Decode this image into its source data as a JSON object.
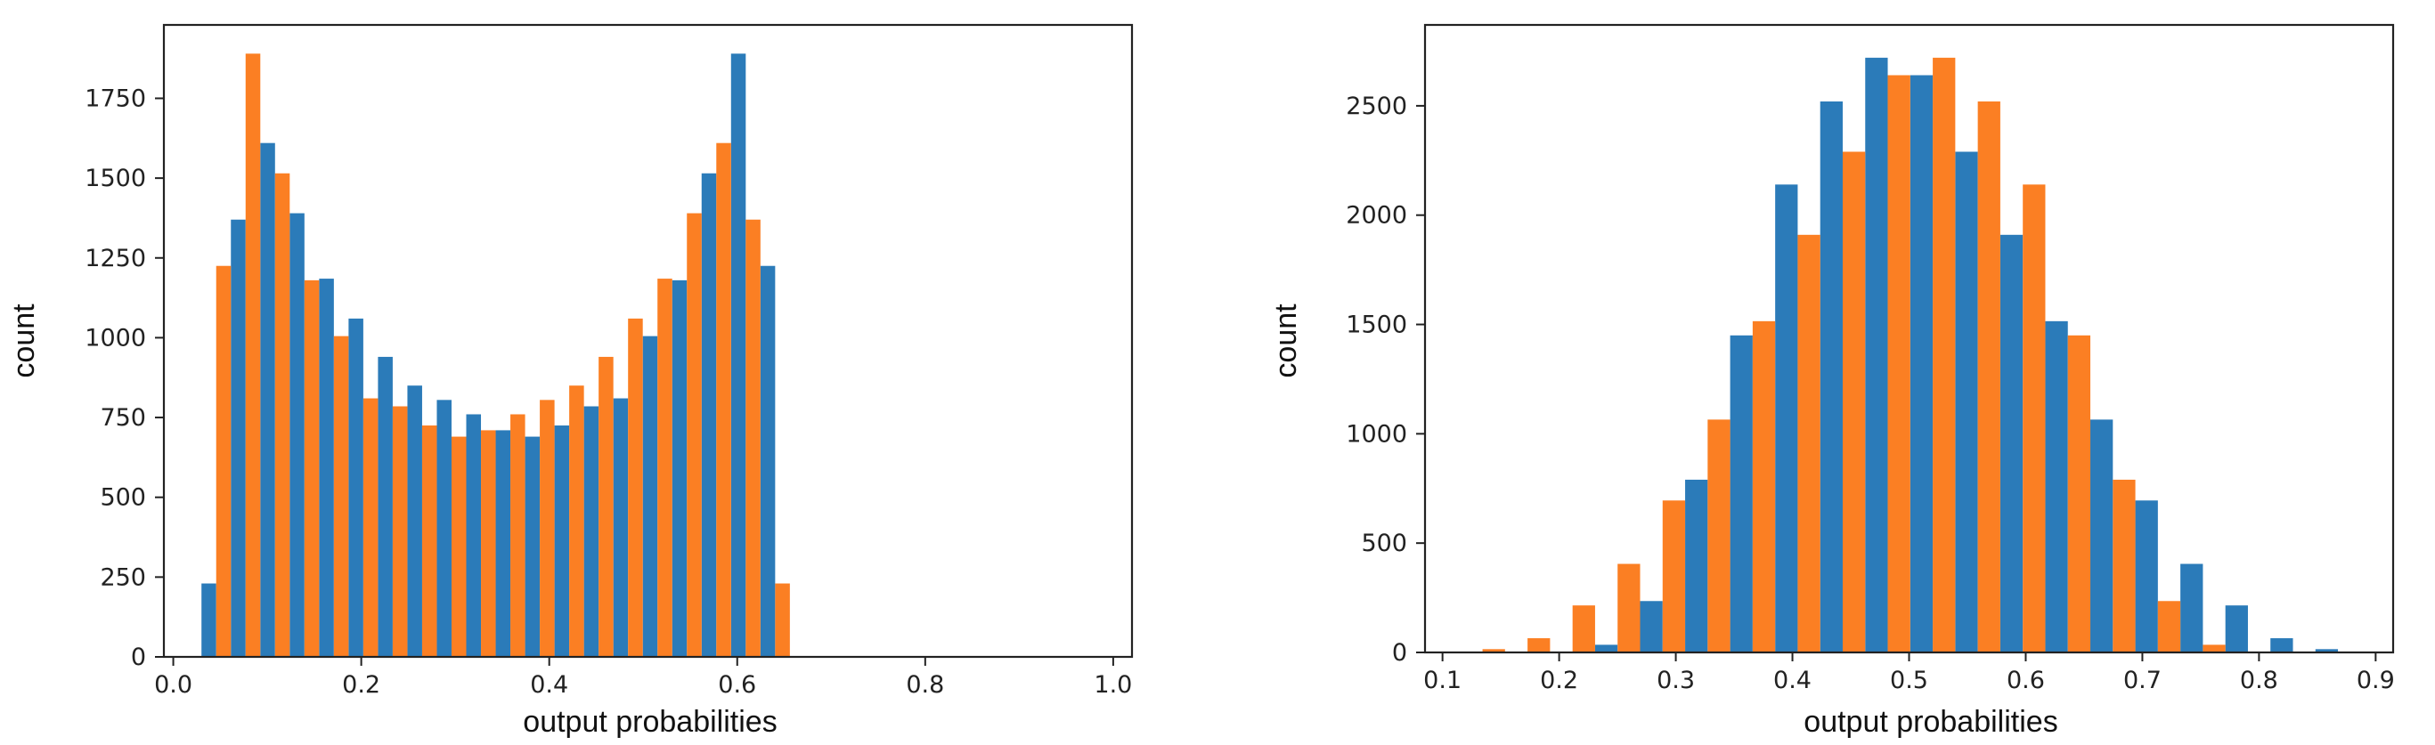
{
  "colors": {
    "series_a": "#2b7bb9",
    "series_b": "#fb7f23"
  },
  "chart_data": [
    {
      "type": "bar",
      "xlabel": "output probabilities",
      "ylabel": "count",
      "xlim": [
        -0.01,
        1.02
      ],
      "ylim": [
        0,
        1980
      ],
      "xticks": [
        0.0,
        0.2,
        0.4,
        0.6,
        0.8,
        1.0
      ],
      "xtick_labels": [
        "0.0",
        "0.2",
        "0.4",
        "0.6",
        "0.8",
        "1.0"
      ],
      "yticks": [
        0,
        250,
        500,
        750,
        1000,
        1250,
        1500,
        1750
      ],
      "ytick_labels": [
        "0",
        "250",
        "500",
        "750",
        "1000",
        "1250",
        "1500",
        "1750"
      ],
      "bin_start": 0.03,
      "bin_width": 0.0313,
      "grid": false,
      "series": [
        {
          "color": "#2b7bb9",
          "values": [
            230,
            1370,
            1610,
            1390,
            1185,
            1060,
            940,
            850,
            805,
            760,
            710,
            690,
            725,
            785,
            810,
            1005,
            1180,
            1515,
            1890,
            1225
          ]
        },
        {
          "color": "#fb7f23",
          "values": [
            1225,
            1890,
            1515,
            1180,
            1005,
            810,
            785,
            725,
            690,
            710,
            760,
            805,
            850,
            940,
            1060,
            1185,
            1390,
            1610,
            1370,
            230
          ]
        }
      ]
    },
    {
      "type": "bar",
      "xlabel": "output probabilities",
      "ylabel": "count",
      "xlim": [
        0.085,
        0.915
      ],
      "ylim": [
        0,
        2870
      ],
      "xticks": [
        0.1,
        0.2,
        0.3,
        0.4,
        0.5,
        0.6,
        0.7,
        0.8,
        0.9
      ],
      "xtick_labels": [
        "0.1",
        "0.2",
        "0.3",
        "0.4",
        "0.5",
        "0.6",
        "0.7",
        "0.8",
        "0.9"
      ],
      "yticks": [
        0,
        500,
        1000,
        1500,
        2000,
        2500
      ],
      "ytick_labels": [
        "0",
        "500",
        "1000",
        "1500",
        "2000",
        "2500"
      ],
      "bin_start": 0.115,
      "bin_width": 0.0386,
      "grid": false,
      "series": [
        {
          "color": "#2b7bb9",
          "values": [
            0,
            0,
            0,
            35,
            235,
            790,
            1450,
            2140,
            2520,
            2720,
            2640,
            2290,
            1910,
            1515,
            1065,
            695,
            405,
            215,
            65,
            15
          ]
        },
        {
          "color": "#fb7f23",
          "values": [
            15,
            65,
            215,
            405,
            695,
            1065,
            1515,
            1910,
            2290,
            2640,
            2720,
            2520,
            2140,
            1450,
            790,
            235,
            35,
            0,
            0,
            0
          ]
        }
      ]
    }
  ]
}
